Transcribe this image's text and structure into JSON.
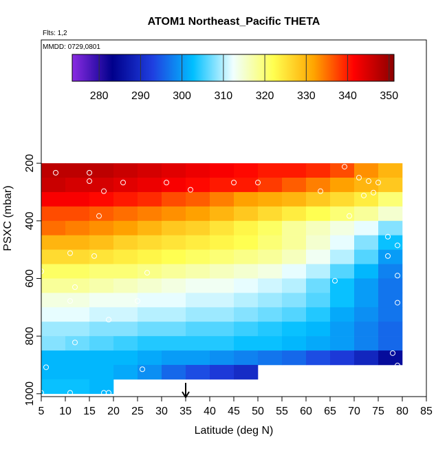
{
  "chart_data": {
    "type": "heatmap",
    "title": "ATOM1 Northeast_Pacific THETA",
    "subtitles": [
      "Flts: 1,2",
      "MMDD: 0729,0801"
    ],
    "x_label": "Latitude (deg N)",
    "y_label": "PSXC (mbar)",
    "xlim": [
      5,
      85
    ],
    "xticks": [
      5,
      10,
      15,
      20,
      25,
      30,
      35,
      40,
      45,
      50,
      55,
      60,
      65,
      70,
      75,
      80,
      85
    ],
    "ylim": [
      1010,
      -228
    ],
    "yticks": [
      200,
      400,
      600,
      800,
      1000
    ],
    "x_bins": [
      5,
      10,
      15,
      20,
      25,
      30,
      35,
      40,
      45,
      50,
      55,
      60,
      65,
      70,
      75,
      80,
      85
    ],
    "y_bins": [
      200,
      250,
      300,
      350,
      400,
      450,
      500,
      550,
      600,
      650,
      700,
      750,
      800,
      850,
      900,
      950,
      1000
    ],
    "z": [
      [
        347,
        347,
        347,
        346,
        345,
        344,
        343,
        342,
        341,
        340,
        340,
        339,
        337,
        333,
        330,
        null
      ],
      [
        346,
        345,
        345,
        344,
        343,
        342,
        341,
        340,
        340,
        338,
        336,
        334,
        332,
        330,
        328,
        null
      ],
      [
        342,
        342,
        341,
        340,
        339,
        337,
        336,
        334,
        332,
        331,
        330,
        328,
        326,
        324,
        320,
        null
      ],
      [
        337,
        337,
        336,
        335,
        334,
        333,
        332,
        330,
        328,
        326,
        324,
        322,
        320,
        318,
        315,
        null
      ],
      [
        335,
        334,
        333,
        332,
        330,
        328,
        327,
        325,
        323,
        321,
        318,
        316,
        314,
        312,
        308,
        null
      ],
      [
        330,
        330,
        329,
        327,
        326,
        325,
        324,
        323,
        322,
        320,
        318,
        315,
        312,
        308,
        303,
        null
      ],
      [
        326,
        326,
        325,
        324,
        323,
        322,
        321,
        320,
        319,
        318,
        316,
        313,
        310,
        306,
        300,
        null
      ],
      [
        321,
        321,
        320,
        320,
        319,
        318,
        317,
        316,
        315,
        314,
        312,
        310,
        306,
        302,
        298,
        null
      ],
      [
        318,
        318,
        317,
        316,
        315,
        314,
        313,
        313,
        312,
        311,
        310,
        307,
        303,
        300,
        297,
        null
      ],
      [
        314,
        314,
        313,
        313,
        312,
        312,
        311,
        311,
        310,
        309,
        308,
        306,
        303,
        300,
        297,
        null
      ],
      [
        312,
        312,
        311,
        311,
        310,
        310,
        309,
        309,
        308,
        307,
        306,
        304,
        301,
        299,
        297,
        null
      ],
      [
        309,
        309,
        308,
        308,
        307,
        307,
        306,
        306,
        305,
        304,
        303,
        302,
        300,
        298,
        296,
        null
      ],
      [
        308,
        307,
        306,
        305,
        304,
        304,
        304,
        304,
        303,
        303,
        302,
        301,
        300,
        298,
        296,
        null
      ],
      [
        302,
        302,
        302,
        302,
        301,
        300,
        300,
        299,
        298,
        297,
        296,
        294,
        292,
        289,
        285,
        null
      ],
      [
        302,
        302,
        302,
        301,
        299,
        296,
        294,
        292,
        290,
        null,
        null,
        null,
        null,
        null,
        null,
        null
      ],
      [
        303,
        303,
        302,
        null,
        null,
        null,
        null,
        null,
        null,
        null,
        null,
        null,
        null,
        null,
        null,
        null
      ]
    ],
    "points": {
      "x": [
        8,
        15,
        15,
        18,
        22,
        31,
        36,
        45,
        50,
        63,
        68,
        71,
        73,
        75,
        74,
        72,
        69,
        77,
        79,
        17,
        11,
        16,
        27,
        77,
        66,
        5,
        12,
        11,
        25,
        19,
        12,
        79,
        79,
        78,
        79,
        6,
        26,
        5,
        11,
        18,
        19
      ],
      "y": [
        233,
        233,
        262,
        297,
        267,
        267,
        292,
        267,
        267,
        297,
        212,
        250,
        262,
        267,
        302,
        312,
        383,
        455,
        485,
        383,
        512,
        522,
        580,
        522,
        608,
        575,
        630,
        678,
        678,
        743,
        822,
        590,
        684,
        859,
        902,
        908,
        915,
        997,
        997,
        997,
        997
      ]
    },
    "arrow_lat": 35,
    "colorbar": {
      "lim": [
        273.5,
        351.2
      ],
      "ticks": [
        280,
        290,
        300,
        310,
        320,
        330,
        340,
        350
      ],
      "colors": [
        "#8a2be2",
        "#00008b",
        "#1f3fe0",
        "#00bfff",
        "#f0ffff",
        "#ffff50",
        "#ffa500",
        "#ff0000",
        "#8b0000"
      ]
    }
  }
}
